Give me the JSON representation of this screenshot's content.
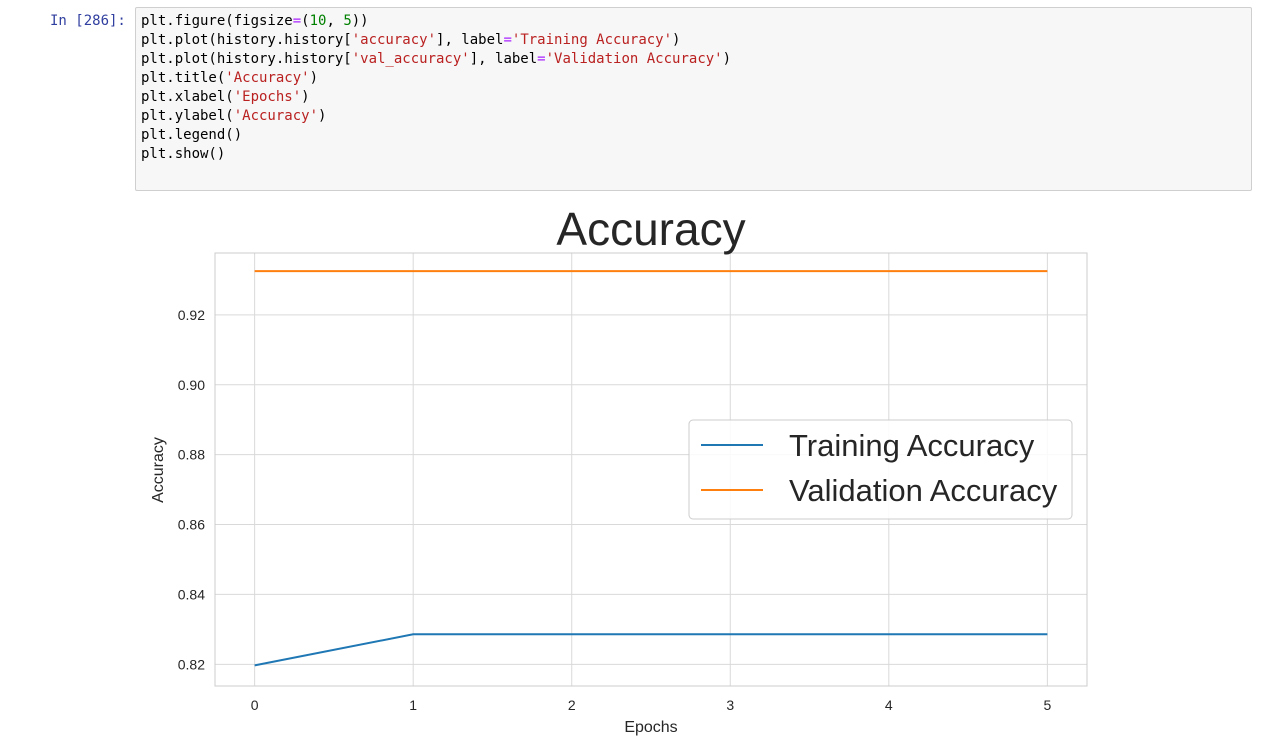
{
  "cell": {
    "prompt": "In [286]:",
    "code_lines": [
      [
        {
          "t": "plt.figure(figsize"
        },
        {
          "t": "=",
          "c": "o"
        },
        {
          "t": "("
        },
        {
          "t": "10",
          "c": "n"
        },
        {
          "t": ", "
        },
        {
          "t": "5",
          "c": "n"
        },
        {
          "t": "))"
        }
      ],
      [
        {
          "t": "plt.plot(history.history["
        },
        {
          "t": "'accuracy'",
          "c": "s"
        },
        {
          "t": "], label"
        },
        {
          "t": "=",
          "c": "o"
        },
        {
          "t": "'Training Accuracy'",
          "c": "s"
        },
        {
          "t": ")"
        }
      ],
      [
        {
          "t": "plt.plot(history.history["
        },
        {
          "t": "'val_accuracy'",
          "c": "s"
        },
        {
          "t": "], label"
        },
        {
          "t": "=",
          "c": "o"
        },
        {
          "t": "'Validation Accuracy'",
          "c": "s"
        },
        {
          "t": ")"
        }
      ],
      [
        {
          "t": "plt.title("
        },
        {
          "t": "'Accuracy'",
          "c": "s"
        },
        {
          "t": ")"
        }
      ],
      [
        {
          "t": "plt.xlabel("
        },
        {
          "t": "'Epochs'",
          "c": "s"
        },
        {
          "t": ")"
        }
      ],
      [
        {
          "t": "plt.ylabel("
        },
        {
          "t": "'Accuracy'",
          "c": "s"
        },
        {
          "t": ")"
        }
      ],
      [
        {
          "t": "plt.legend()"
        }
      ],
      [
        {
          "t": "plt.show()"
        }
      ]
    ]
  },
  "chart_data": {
    "type": "line",
    "title": "Accuracy",
    "xlabel": "Epochs",
    "ylabel": "Accuracy",
    "x": [
      0,
      1,
      2,
      3,
      4,
      5
    ],
    "xticks": [
      "0",
      "1",
      "2",
      "3",
      "4",
      "5"
    ],
    "yticks": [
      "0.82",
      "0.84",
      "0.86",
      "0.88",
      "0.90",
      "0.92"
    ],
    "ytick_values": [
      0.82,
      0.84,
      0.86,
      0.88,
      0.9,
      0.92
    ],
    "xlim": [
      -0.25,
      5.25
    ],
    "ylim": [
      0.8138,
      0.9377
    ],
    "grid": true,
    "legend_position": "center-right",
    "series": [
      {
        "name": "Training Accuracy",
        "color": "#1f77b4",
        "values": [
          0.8197,
          0.8286,
          0.8286,
          0.8286,
          0.8286,
          0.8286
        ]
      },
      {
        "name": "Validation Accuracy",
        "color": "#ff7f0e",
        "values": [
          0.9325,
          0.9325,
          0.9325,
          0.9325,
          0.9325,
          0.9325
        ]
      }
    ]
  }
}
